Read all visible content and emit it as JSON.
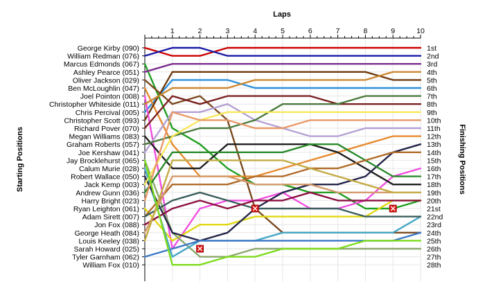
{
  "chart_data": {
    "type": "line",
    "title": "",
    "xlabel": "Laps",
    "ylabel_left": "Starting Positions",
    "ylabel_right": "Finishing Positions",
    "laps": [
      0,
      1,
      2,
      3,
      4,
      5,
      6,
      7,
      8,
      9,
      10
    ],
    "lap_labels": [
      "1",
      "2",
      "3",
      "4",
      "5",
      "6",
      "7",
      "8",
      "9",
      "10"
    ],
    "starting_labels": [
      "George Kirby (090)",
      "William Redman (076)",
      "Marcus Edmonds (067)",
      "Ashley Pearce (051)",
      "Oliver Jackson (029)",
      "Ben McLoughlin (047)",
      "Joel Pointon (008)",
      "Christopher Whiteside (011)",
      "Chris Percival (005)",
      "Christopher Scott (093)",
      "Richard Pover (070)",
      "Megan Williams (083)",
      "Graham Roberts (057)",
      "Joe Kershaw (041)",
      "Jay Brocklehurst (065)",
      "Calum Murie (028)",
      "Robert Wallace (050)",
      "Jack Kemp (003)",
      "Andrew Gunn (036)",
      "Harry Bright (023)",
      "Ryan Leighton (061)",
      "Adam Sirett (007)",
      "Jon Fox (088)",
      "George Heath (084)",
      "Louis Keeley (038)",
      "Sarah Howard (025)",
      "Tyler Garnham (062)",
      "William Fox (010)"
    ],
    "finishing_labels": [
      "1st",
      "2nd",
      "3rd",
      "4th",
      "5th",
      "6th",
      "7th",
      "8th",
      "9th",
      "10th",
      "11th",
      "12th",
      "13th",
      "14th",
      "15th",
      "16th",
      "17th",
      "18th",
      "19th",
      "20th",
      "21st",
      "22nd",
      "23rd",
      "24th",
      "25th",
      "26th",
      "27th",
      "28th"
    ],
    "ylim": [
      1,
      28
    ],
    "series": [
      {
        "color": "#cc0000",
        "positions": [
          1,
          2,
          2,
          1,
          1,
          1,
          1,
          1,
          1,
          1,
          1
        ]
      },
      {
        "color": "#1a1aa6",
        "positions": [
          2,
          1,
          1,
          2,
          2,
          2,
          2,
          2,
          2,
          2,
          2
        ]
      },
      {
        "color": "#1f9e1f",
        "positions": [
          3,
          11,
          13,
          16,
          18,
          18,
          19,
          19,
          21,
          21,
          20
        ]
      },
      {
        "color": "#7b2e8e",
        "positions": [
          4,
          3,
          3,
          3,
          3,
          3,
          3,
          3,
          3,
          3,
          3
        ]
      },
      {
        "color": "#2e8fdc",
        "positions": [
          9,
          5,
          5,
          5,
          6,
          6,
          6,
          6,
          6,
          6,
          6
        ]
      },
      {
        "color": "#7a4a1f",
        "positions": [
          5,
          8,
          7,
          10,
          21,
          24,
          24,
          24,
          24,
          24,
          24
        ]
      },
      {
        "color": "#e68a2e",
        "positions": [
          6,
          13,
          17,
          17,
          17,
          16,
          15,
          14,
          13,
          12,
          12
        ]
      },
      {
        "color": "#6e3a0e",
        "positions": [
          10,
          4,
          4,
          4,
          4,
          4,
          4,
          4,
          4,
          5,
          5
        ]
      },
      {
        "color": "#f04de0",
        "positions": [
          7,
          26,
          21,
          20,
          20,
          19,
          21,
          21,
          20,
          17,
          16
        ]
      },
      {
        "color": "#b4a0d4",
        "positions": [
          14,
          9,
          9,
          8,
          10,
          11,
          12,
          12,
          11,
          11,
          11
        ]
      },
      {
        "color": "#7a2020",
        "positions": [
          11,
          7,
          8,
          7,
          7,
          7,
          7,
          8,
          8,
          8,
          8
        ]
      },
      {
        "color": "#cc8833",
        "positions": [
          8,
          6,
          6,
          6,
          5,
          5,
          5,
          5,
          5,
          4,
          4
        ]
      },
      {
        "color": "#1e1e1e",
        "positions": [
          12,
          16,
          16,
          13,
          13,
          13,
          13,
          14,
          16,
          18,
          18
        ]
      },
      {
        "color": "#4a7a3c",
        "positions": [
          13,
          12,
          11,
          11,
          10,
          8,
          8,
          8,
          7,
          7,
          7
        ]
      },
      {
        "color": "#e0d810",
        "positions": [
          21,
          25,
          23,
          23,
          22,
          22,
          22,
          22,
          22,
          20,
          20
        ]
      },
      {
        "color": "#8aa86c",
        "positions": [
          15,
          24,
          27,
          27,
          26,
          26,
          26,
          26,
          26,
          26,
          26
        ]
      },
      {
        "color": "#44a6c4",
        "positions": [
          16,
          27,
          25,
          25,
          25,
          24,
          24,
          24,
          24,
          24,
          22
        ]
      },
      {
        "color": "#24244a",
        "positions": [
          17,
          24,
          25,
          24,
          21,
          19,
          18,
          18,
          17,
          14,
          13
        ]
      },
      {
        "color": "#f7e85a",
        "positions": [
          18,
          12,
          10,
          9,
          9,
          9,
          9,
          9,
          9,
          9,
          9
        ]
      },
      {
        "color": "#2a8a2a",
        "positions": [
          19,
          14,
          14,
          14,
          14,
          14,
          13,
          13,
          15,
          17,
          17
        ]
      },
      {
        "color": "#e89868",
        "positions": [
          20,
          9,
          10,
          10,
          11,
          11,
          10,
          10,
          10,
          10,
          10
        ]
      },
      {
        "color": "#b06a28",
        "positions": [
          22,
          18,
          18,
          18,
          17,
          17,
          16,
          16,
          15,
          14,
          14
        ]
      },
      {
        "color": "#3a5d5d",
        "positions": [
          22,
          20,
          19,
          20,
          21,
          21,
          21,
          21,
          22,
          22,
          22
        ]
      },
      {
        "color": "#8b0e3e",
        "positions": [
          23,
          21,
          20,
          21,
          20,
          20,
          19,
          20,
          20,
          20,
          20
        ]
      },
      {
        "color": "#d49a6a",
        "positions": [
          24,
          17,
          17,
          17,
          18,
          18,
          18,
          19,
          19,
          19,
          19
        ]
      },
      {
        "color": "#c4aa44",
        "positions": [
          25,
          15,
          15,
          15,
          15,
          15,
          16,
          17,
          18,
          19,
          19
        ]
      },
      {
        "color": "#3c78c8",
        "positions": [
          27,
          26,
          25,
          25,
          25,
          25,
          25,
          25,
          25,
          25,
          24
        ]
      },
      {
        "color": "#7cdc1c",
        "positions": [
          15,
          28,
          28,
          27,
          27,
          26,
          26,
          26,
          25,
          25,
          25
        ]
      }
    ],
    "retirements": [
      {
        "lap": 2,
        "position": 26
      },
      {
        "lap": 4,
        "position": 21
      },
      {
        "lap": 9,
        "position": 21
      }
    ]
  }
}
